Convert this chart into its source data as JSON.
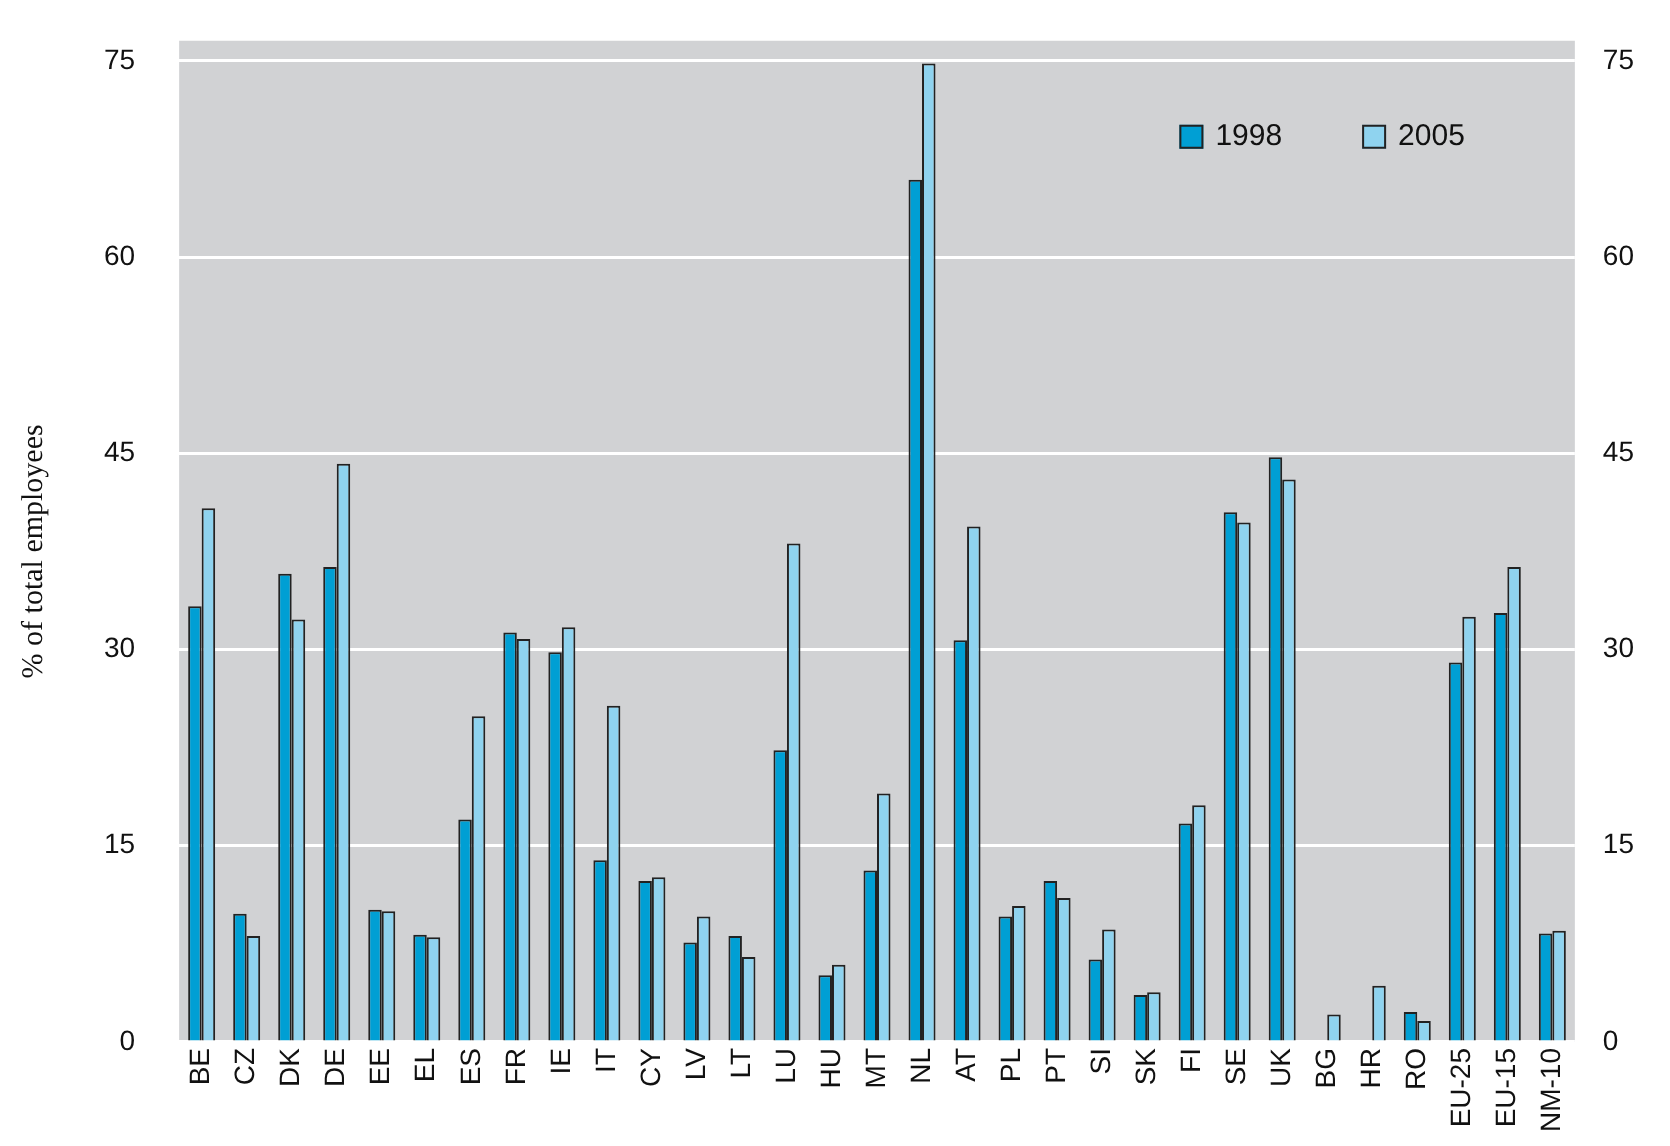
{
  "chart_data": {
    "type": "bar",
    "ylabel": "% of total employees",
    "categories": [
      "BE",
      "CZ",
      "DK",
      "DE",
      "EE",
      "EL",
      "ES",
      "FR",
      "IE",
      "IT",
      "CY",
      "LV",
      "LT",
      "LU",
      "HU",
      "MT",
      "NL",
      "AT",
      "PL",
      "PT",
      "SI",
      "SK",
      "FI",
      "SE",
      "UK",
      "BG",
      "HR",
      "RO",
      "EU-25",
      "EU-15",
      "NM-10"
    ],
    "series": [
      {
        "name": "1998",
        "color": "#009fd4",
        "values": [
          33.3,
          9.8,
          35.8,
          36.3,
          10.1,
          8.2,
          17.0,
          31.3,
          29.8,
          13.9,
          12.3,
          7.6,
          8.1,
          22.3,
          5.1,
          13.1,
          65.9,
          30.7,
          9.6,
          12.3,
          6.3,
          3.6,
          16.7,
          40.5,
          44.7,
          null,
          null,
          2.3,
          29.0,
          32.8,
          8.3
        ]
      },
      {
        "name": "2005",
        "color": "#8fd3ef",
        "values": [
          40.8,
          8.1,
          32.3,
          44.2,
          10.0,
          8.0,
          24.9,
          30.8,
          31.7,
          25.7,
          12.6,
          9.6,
          6.5,
          38.1,
          5.9,
          19.0,
          74.8,
          39.4,
          10.4,
          11.0,
          8.6,
          3.8,
          18.1,
          39.7,
          43.0,
          2.1,
          4.3,
          1.6,
          32.5,
          36.3,
          8.5
        ]
      }
    ],
    "ylim": [
      0,
      75
    ],
    "yticks": [
      0,
      15,
      30,
      45,
      60,
      75
    ],
    "y2lim": [
      0,
      75
    ],
    "y2ticks": [
      0,
      15,
      30,
      45,
      60,
      75
    ],
    "grid": "y",
    "legend": "top right"
  }
}
